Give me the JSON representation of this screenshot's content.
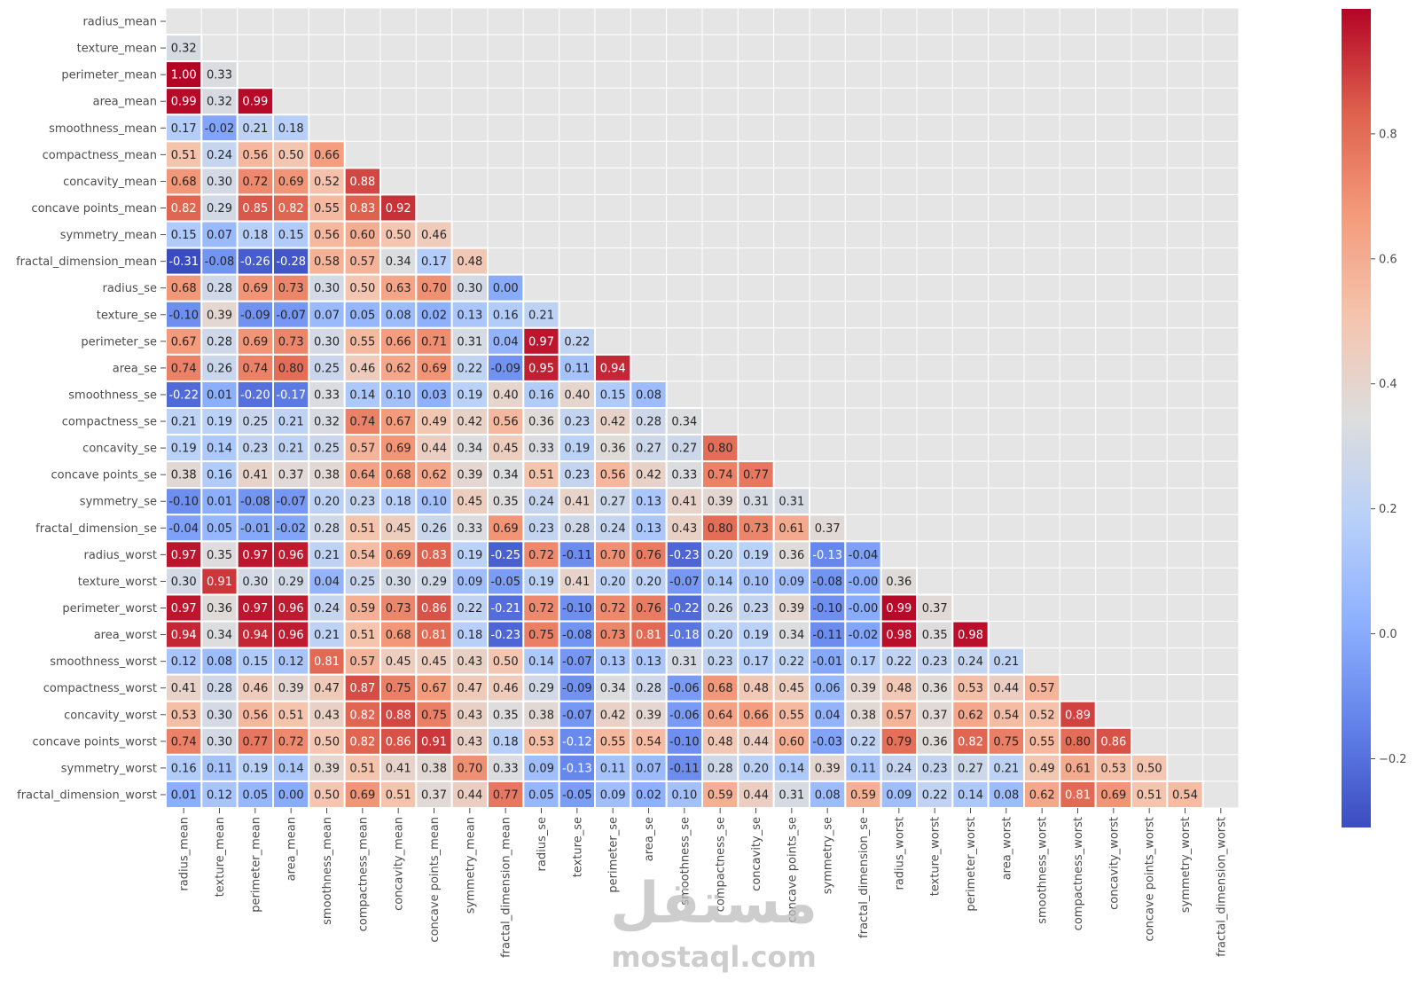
{
  "chart_data": {
    "type": "heatmap",
    "title": "",
    "xlabel": "",
    "ylabel": "",
    "colormap": "coolwarm",
    "value_range": [
      -0.31,
      1.0
    ],
    "mask": "upper-triangle-and-diagonal",
    "value_format": "two decimals",
    "grid": true,
    "cell_border_color": "#ffffff",
    "masked_cell_color": "#e5e5e5",
    "labels": [
      "radius_mean",
      "texture_mean",
      "perimeter_mean",
      "area_mean",
      "smoothness_mean",
      "compactness_mean",
      "concavity_mean",
      "concave points_mean",
      "symmetry_mean",
      "fractal_dimension_mean",
      "radius_se",
      "texture_se",
      "perimeter_se",
      "area_se",
      "smoothness_se",
      "compactness_se",
      "concavity_se",
      "concave points_se",
      "symmetry_se",
      "fractal_dimension_se",
      "radius_worst",
      "texture_worst",
      "perimeter_worst",
      "area_worst",
      "smoothness_worst",
      "compactness_worst",
      "concavity_worst",
      "concave points_worst",
      "symmetry_worst",
      "fractal_dimension_worst"
    ],
    "lower_triangle": [
      [],
      [
        "0.32"
      ],
      [
        "1.00",
        "0.33"
      ],
      [
        "0.99",
        "0.32",
        "0.99"
      ],
      [
        "0.17",
        "-0.02",
        "0.21",
        "0.18"
      ],
      [
        "0.51",
        "0.24",
        "0.56",
        "0.50",
        "0.66"
      ],
      [
        "0.68",
        "0.30",
        "0.72",
        "0.69",
        "0.52",
        "0.88"
      ],
      [
        "0.82",
        "0.29",
        "0.85",
        "0.82",
        "0.55",
        "0.83",
        "0.92"
      ],
      [
        "0.15",
        "0.07",
        "0.18",
        "0.15",
        "0.56",
        "0.60",
        "0.50",
        "0.46"
      ],
      [
        "-0.31",
        "-0.08",
        "-0.26",
        "-0.28",
        "0.58",
        "0.57",
        "0.34",
        "0.17",
        "0.48"
      ],
      [
        "0.68",
        "0.28",
        "0.69",
        "0.73",
        "0.30",
        "0.50",
        "0.63",
        "0.70",
        "0.30",
        "0.00"
      ],
      [
        "-0.10",
        "0.39",
        "-0.09",
        "-0.07",
        "0.07",
        "0.05",
        "0.08",
        "0.02",
        "0.13",
        "0.16",
        "0.21"
      ],
      [
        "0.67",
        "0.28",
        "0.69",
        "0.73",
        "0.30",
        "0.55",
        "0.66",
        "0.71",
        "0.31",
        "0.04",
        "0.97",
        "0.22"
      ],
      [
        "0.74",
        "0.26",
        "0.74",
        "0.80",
        "0.25",
        "0.46",
        "0.62",
        "0.69",
        "0.22",
        "-0.09",
        "0.95",
        "0.11",
        "0.94"
      ],
      [
        "-0.22",
        "0.01",
        "-0.20",
        "-0.17",
        "0.33",
        "0.14",
        "0.10",
        "0.03",
        "0.19",
        "0.40",
        "0.16",
        "0.40",
        "0.15",
        "0.08"
      ],
      [
        "0.21",
        "0.19",
        "0.25",
        "0.21",
        "0.32",
        "0.74",
        "0.67",
        "0.49",
        "0.42",
        "0.56",
        "0.36",
        "0.23",
        "0.42",
        "0.28",
        "0.34"
      ],
      [
        "0.19",
        "0.14",
        "0.23",
        "0.21",
        "0.25",
        "0.57",
        "0.69",
        "0.44",
        "0.34",
        "0.45",
        "0.33",
        "0.19",
        "0.36",
        "0.27",
        "0.27",
        "0.80"
      ],
      [
        "0.38",
        "0.16",
        "0.41",
        "0.37",
        "0.38",
        "0.64",
        "0.68",
        "0.62",
        "0.39",
        "0.34",
        "0.51",
        "0.23",
        "0.56",
        "0.42",
        "0.33",
        "0.74",
        "0.77"
      ],
      [
        "-0.10",
        "0.01",
        "-0.08",
        "-0.07",
        "0.20",
        "0.23",
        "0.18",
        "0.10",
        "0.45",
        "0.35",
        "0.24",
        "0.41",
        "0.27",
        "0.13",
        "0.41",
        "0.39",
        "0.31",
        "0.31"
      ],
      [
        "-0.04",
        "0.05",
        "-0.01",
        "-0.02",
        "0.28",
        "0.51",
        "0.45",
        "0.26",
        "0.33",
        "0.69",
        "0.23",
        "0.28",
        "0.24",
        "0.13",
        "0.43",
        "0.80",
        "0.73",
        "0.61",
        "0.37"
      ],
      [
        "0.97",
        "0.35",
        "0.97",
        "0.96",
        "0.21",
        "0.54",
        "0.69",
        "0.83",
        "0.19",
        "-0.25",
        "0.72",
        "-0.11",
        "0.70",
        "0.76",
        "-0.23",
        "0.20",
        "0.19",
        "0.36",
        "-0.13",
        "-0.04"
      ],
      [
        "0.30",
        "0.91",
        "0.30",
        "0.29",
        "0.04",
        "0.25",
        "0.30",
        "0.29",
        "0.09",
        "-0.05",
        "0.19",
        "0.41",
        "0.20",
        "0.20",
        "-0.07",
        "0.14",
        "0.10",
        "0.09",
        "-0.08",
        "-0.00",
        "0.36"
      ],
      [
        "0.97",
        "0.36",
        "0.97",
        "0.96",
        "0.24",
        "0.59",
        "0.73",
        "0.86",
        "0.22",
        "-0.21",
        "0.72",
        "-0.10",
        "0.72",
        "0.76",
        "-0.22",
        "0.26",
        "0.23",
        "0.39",
        "-0.10",
        "-0.00",
        "0.99",
        "0.37"
      ],
      [
        "0.94",
        "0.34",
        "0.94",
        "0.96",
        "0.21",
        "0.51",
        "0.68",
        "0.81",
        "0.18",
        "-0.23",
        "0.75",
        "-0.08",
        "0.73",
        "0.81",
        "-0.18",
        "0.20",
        "0.19",
        "0.34",
        "-0.11",
        "-0.02",
        "0.98",
        "0.35",
        "0.98"
      ],
      [
        "0.12",
        "0.08",
        "0.15",
        "0.12",
        "0.81",
        "0.57",
        "0.45",
        "0.45",
        "0.43",
        "0.50",
        "0.14",
        "-0.07",
        "0.13",
        "0.13",
        "0.31",
        "0.23",
        "0.17",
        "0.22",
        "-0.01",
        "0.17",
        "0.22",
        "0.23",
        "0.24",
        "0.21"
      ],
      [
        "0.41",
        "0.28",
        "0.46",
        "0.39",
        "0.47",
        "0.87",
        "0.75",
        "0.67",
        "0.47",
        "0.46",
        "0.29",
        "-0.09",
        "0.34",
        "0.28",
        "-0.06",
        "0.68",
        "0.48",
        "0.45",
        "0.06",
        "0.39",
        "0.48",
        "0.36",
        "0.53",
        "0.44",
        "0.57"
      ],
      [
        "0.53",
        "0.30",
        "0.56",
        "0.51",
        "0.43",
        "0.82",
        "0.88",
        "0.75",
        "0.43",
        "0.35",
        "0.38",
        "-0.07",
        "0.42",
        "0.39",
        "-0.06",
        "0.64",
        "0.66",
        "0.55",
        "0.04",
        "0.38",
        "0.57",
        "0.37",
        "0.62",
        "0.54",
        "0.52",
        "0.89"
      ],
      [
        "0.74",
        "0.30",
        "0.77",
        "0.72",
        "0.50",
        "0.82",
        "0.86",
        "0.91",
        "0.43",
        "0.18",
        "0.53",
        "-0.12",
        "0.55",
        "0.54",
        "-0.10",
        "0.48",
        "0.44",
        "0.60",
        "-0.03",
        "0.22",
        "0.79",
        "0.36",
        "0.82",
        "0.75",
        "0.55",
        "0.80",
        "0.86"
      ],
      [
        "0.16",
        "0.11",
        "0.19",
        "0.14",
        "0.39",
        "0.51",
        "0.41",
        "0.38",
        "0.70",
        "0.33",
        "0.09",
        "-0.13",
        "0.11",
        "0.07",
        "-0.11",
        "0.28",
        "0.20",
        "0.14",
        "0.39",
        "0.11",
        "0.24",
        "0.23",
        "0.27",
        "0.21",
        "0.49",
        "0.61",
        "0.53",
        "0.50"
      ],
      [
        "0.01",
        "0.12",
        "0.05",
        "0.00",
        "0.50",
        "0.69",
        "0.51",
        "0.37",
        "0.44",
        "0.77",
        "0.05",
        "-0.05",
        "0.09",
        "0.02",
        "0.10",
        "0.59",
        "0.44",
        "0.31",
        "0.08",
        "0.59",
        "0.09",
        "0.22",
        "0.14",
        "0.08",
        "0.62",
        "0.81",
        "0.69",
        "0.51",
        "0.54"
      ]
    ],
    "colorbar": {
      "ticks": [
        "0.8",
        "0.6",
        "0.4",
        "0.2",
        "0.0",
        "−0.2"
      ],
      "tick_values": [
        0.8,
        0.6,
        0.4,
        0.2,
        0.0,
        -0.2
      ]
    }
  },
  "watermark": {
    "arabic": "مستقل",
    "latin": "mostaql.com"
  }
}
